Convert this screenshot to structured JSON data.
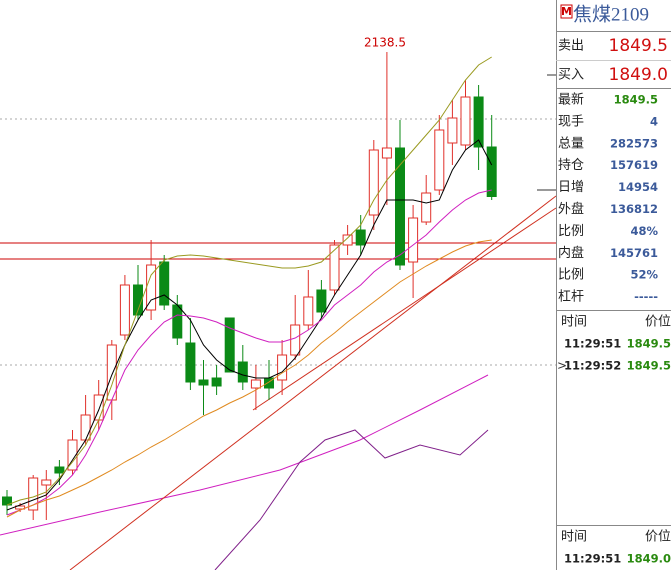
{
  "header": {
    "badge": "M",
    "title": "焦煤2109"
  },
  "quote": [
    {
      "label": "卖出",
      "value": "1849.5"
    },
    {
      "label": "买入",
      "value": "1849.0"
    }
  ],
  "stats": [
    {
      "label": "最新",
      "value": "1849.5"
    },
    {
      "label": "现手",
      "value": "4"
    },
    {
      "label": "总量",
      "value": "282573"
    },
    {
      "label": "持仓",
      "value": "157619"
    },
    {
      "label": "日增",
      "value": "14954"
    },
    {
      "label": "外盘",
      "value": "136812"
    },
    {
      "label": "比例",
      "value": "48%"
    },
    {
      "label": "内盘",
      "value": "145761"
    },
    {
      "label": "比例",
      "value": "52%"
    },
    {
      "label": "杠杆",
      "value": "-----"
    }
  ],
  "ticks": {
    "header": [
      "时间",
      "价位"
    ],
    "rows": [
      [
        "11:29:51",
        "1849.5"
      ],
      [
        "11:29:52",
        "1849.5"
      ]
    ]
  },
  "ticks2": {
    "header": [
      "时间",
      "价位"
    ],
    "rows": [
      [
        "11:29:51",
        "1849.0"
      ]
    ]
  },
  "chart_data": {
    "type": "candlestick",
    "annotation": "2138.5",
    "ylim": [
      1102.5,
      2242.5
    ],
    "up_color": "#e0302a",
    "down_color": "#0b8a16",
    "open": [
      1248.5,
      1224.5,
      1222.5,
      1272.5,
      1308.5,
      1302.5,
      1362.5,
      1402.5,
      1442.5,
      1572.5,
      1672.5,
      1622.5,
      1718.5,
      1632.5,
      1556.5,
      1482.5,
      1486.5,
      1606.5,
      1518.5,
      1466.5,
      1486.5,
      1482.5,
      1532.5,
      1592.5,
      1662.5,
      1662.5,
      1752.5,
      1782.5,
      1812.5,
      1926.5,
      1946.5,
      1718.5,
      1798.5,
      1862.5,
      1956.5,
      1952.5,
      2048.5,
      1948.5
    ],
    "high": [
      1262.5,
      1236.5,
      1292.5,
      1302.5,
      1322.5,
      1382.5,
      1452.5,
      1482.5,
      1562.5,
      1692.5,
      1712.5,
      1762.5,
      1732.5,
      1652.5,
      1606.5,
      1522.5,
      1512.5,
      1606.5,
      1552.5,
      1512.5,
      1522.5,
      1562.5,
      1652.5,
      1702.5,
      1682.5,
      1762.5,
      1792.5,
      1812.5,
      1962.5,
      2138.5,
      2002.5,
      1832.5,
      1892.5,
      2012.5,
      2042.5,
      2082.5,
      2072.5,
      2012.5
    ],
    "low": [
      1212.5,
      1218.5,
      1202.5,
      1202.5,
      1272.5,
      1292.5,
      1352.5,
      1382.5,
      1402.5,
      1562.5,
      1602.5,
      1602.5,
      1622.5,
      1552.5,
      1462.5,
      1412.5,
      1452.5,
      1498.5,
      1462.5,
      1422.5,
      1442.5,
      1452.5,
      1522.5,
      1582.5,
      1606.5,
      1652.5,
      1732.5,
      1732.5,
      1782.5,
      1832.5,
      1702.5,
      1646.5,
      1792.5,
      1852.5,
      1912.5,
      1942.5,
      1902.5,
      1842.5
    ],
    "close": [
      1232.5,
      1230.5,
      1286.5,
      1282.5,
      1296.5,
      1362.5,
      1412.5,
      1452.5,
      1552.5,
      1672.5,
      1612.5,
      1712.5,
      1632.5,
      1566.5,
      1478.5,
      1472.5,
      1470.5,
      1498.5,
      1478.5,
      1482.5,
      1466.5,
      1532.5,
      1592.5,
      1648.5,
      1618.5,
      1752.5,
      1772.5,
      1752.5,
      1942.5,
      1946.5,
      1712.5,
      1806.5,
      1856.5,
      1982.5,
      2006.5,
      2048.5,
      1948.5,
      1849.5
    ],
    "series": [
      {
        "color": "#000000",
        "values": [
          1222.5,
          1232.5,
          1242.5,
          1252.5,
          1282.5,
          1322.5,
          1362.5,
          1422.5,
          1492.5,
          1552.5,
          1602.5,
          1642.5,
          1652.5,
          1632.5,
          1602.5,
          1552.5,
          1522.5,
          1502.5,
          1492.5,
          1486.5,
          1486.5,
          1498.5,
          1526.5,
          1566.5,
          1606.5,
          1652.5,
          1692.5,
          1732.5,
          1792.5,
          1842.5,
          1842.5,
          1842.5,
          1836.5,
          1842.5,
          1902.5,
          1942.5,
          1962.5,
          1912.5
        ]
      },
      {
        "color": "#9a9a20",
        "values": [
          1232.5,
          1242.5,
          1248.5,
          1258.5,
          1286.5,
          1318.5,
          1352.5,
          1402.5,
          1472.5,
          1552.5,
          1622.5,
          1692.5,
          1722.5,
          1730.5,
          1732.5,
          1730.5,
          1726.5,
          1722.5,
          1718.5,
          1714.5,
          1710.5,
          1706.5,
          1706.5,
          1710.5,
          1718.5,
          1742.5,
          1766.5,
          1792.5,
          1842.5,
          1882.5,
          1912.5,
          1942.5,
          1972.5,
          2002.5,
          2042.5,
          2082.5,
          2112.5,
          2128.5
        ]
      },
      {
        "color": "#d020c0",
        "values": [
          1212.5,
          1222.5,
          1232.5,
          1246.5,
          1266.5,
          1292.5,
          1332.5,
          1382.5,
          1442.5,
          1502.5,
          1542.5,
          1572.5,
          1598.5,
          1612.5,
          1610.5,
          1606.5,
          1598.5,
          1586.5,
          1576.5,
          1566.5,
          1558.5,
          1558.5,
          1566.5,
          1582.5,
          1602.5,
          1632.5,
          1652.5,
          1672.5,
          1698.5,
          1718.5,
          1732.5,
          1752.5,
          1772.5,
          1798.5,
          1822.5,
          1842.5,
          1856.5,
          1862.5
        ]
      },
      {
        "color": "#e08a20",
        "values": [
          1208.5,
          1222.5,
          1232.5,
          1242.5,
          1250.5,
          1262.5,
          1274.5,
          1288.5,
          1302.5,
          1318.5,
          1332.5,
          1348.5,
          1362.5,
          1378.5,
          1394.5,
          1410.5,
          1422.5,
          1436.5,
          1448.5,
          1462.5,
          1478.5,
          1496.5,
          1512.5,
          1532.5,
          1556.5,
          1576.5,
          1598.5,
          1618.5,
          1638.5,
          1658.5,
          1678.5,
          1694.5,
          1710.5,
          1724.5,
          1738.5,
          1750.5,
          1758.5,
          1762.5
        ]
      }
    ],
    "levels": {
      "color": "#cc0000",
      "values": [
        1756.5,
        1724.5
      ]
    }
  }
}
